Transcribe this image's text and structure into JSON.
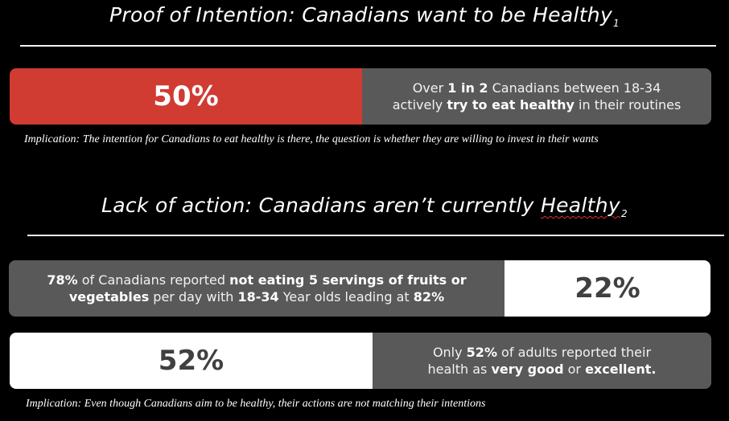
{
  "section1": {
    "title": "Proof of Intention: Canadians want to be Healthy",
    "title_ref": "1",
    "stat": {
      "value": "50%",
      "line1": [
        "Over ",
        "1 in 2",
        " Canadians between 18-34"
      ],
      "line2": [
        "actively ",
        "try to eat healthy",
        " in their routines"
      ]
    },
    "implication": "Implication: The intention for Canadians to eat healthy is there, the question is whether they are willing to invest in their wants"
  },
  "section2": {
    "title_prefix": "Lack of action: Canadians aren’t currently ",
    "title_word": "Healthy",
    "title_ref": "2",
    "stat1": {
      "value": "22%",
      "line1": [
        "78%",
        " of Canadians reported ",
        "not eating 5 servings of fruits or"
      ],
      "line2": [
        "vegetables",
        " per day with ",
        "18-34",
        " Year olds leading at ",
        "82%"
      ]
    },
    "stat2": {
      "value": "52%",
      "line1": [
        "Only ",
        "52%",
        " of adults reported their"
      ],
      "line2": [
        "health as ",
        "very good",
        " or ",
        "excellent."
      ]
    },
    "implication": "Implication: Even though Canadians aim to be healthy, their actions are not matching their intentions"
  },
  "colors": {
    "red": "#d03b32",
    "gray": "#595959",
    "white": "#ffffff",
    "background": "#000000"
  }
}
